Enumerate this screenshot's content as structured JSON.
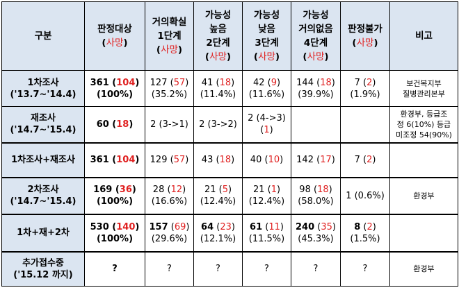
{
  "headers": [
    {
      "label": "구분",
      "sub": ""
    },
    {
      "label": "판정대상",
      "sub": "사망"
    },
    {
      "label": "거의확실 1단계",
      "l1": "거의확실",
      "l2": "1단계",
      "sub": "사망"
    },
    {
      "label": "가능성 높음 2단계",
      "l1": "가능성",
      "l2": "높음",
      "l3": "2단계",
      "sub": "사망"
    },
    {
      "label": "가능성 낮음 3단계",
      "l1": "가능성",
      "l2": "낮음",
      "l3": "3단계",
      "sub": "사망"
    },
    {
      "label": "가능성 거의없음 4단계",
      "l1": "가능성",
      "l2": "거의없음",
      "l3": "4단계",
      "sub": "사망"
    },
    {
      "label": "판정불가",
      "sub": "사망"
    },
    {
      "label": "비고"
    }
  ],
  "rows": [
    {
      "label": "1차조사",
      "period": "('13.7~'14.4)",
      "target": {
        "n": "361",
        "d": "104",
        "pct": "(100%)"
      },
      "s1": {
        "n": "127",
        "d": "57",
        "pct": "(35.2%)"
      },
      "s2": {
        "n": "41",
        "d": "18",
        "pct": "(11.4%)"
      },
      "s3": {
        "n": "42",
        "d": "9",
        "pct": "(11.6%)"
      },
      "s4": {
        "n": "144",
        "d": "18",
        "pct": "(39.9%)"
      },
      "na": {
        "n": "7",
        "d": "2",
        "pct": "(1.9%)"
      },
      "note": [
        "보건복지부",
        "질병관리본부"
      ]
    },
    {
      "label": "재조사",
      "period": "('14.7~'15.4)",
      "target": {
        "n": "60",
        "d": "18"
      },
      "s1": "2 (3->1)",
      "s2": "2 (3->2)",
      "s3": {
        "a": "2 (4->3)",
        "d": "1"
      },
      "note": [
        "환경부, 등급조",
        "정 6(10%) 등급",
        "미조정 54(90%)"
      ]
    },
    {
      "label": "1차조사+재조사",
      "target": {
        "n": "361",
        "d": "104"
      },
      "s1": {
        "n": "129",
        "d": "57"
      },
      "s2": {
        "n": "43",
        "d": "18"
      },
      "s3": {
        "n": "40",
        "d": "10"
      },
      "s4": {
        "n": "142",
        "d": "17"
      },
      "na": {
        "n": "7",
        "d": "2"
      }
    },
    {
      "label": "2차조사",
      "period": "('14.7~'15.4)",
      "target": {
        "n": "169",
        "d": "36",
        "pct": "(100%)"
      },
      "s1": {
        "n": "28",
        "d": "12",
        "pct": "(16.6%)"
      },
      "s2": {
        "n": "21",
        "d": "5",
        "pct": "(12.4%)"
      },
      "s3": {
        "n": "21",
        "d": "1",
        "pct": "(12.4%)"
      },
      "s4": {
        "n": "98",
        "d": "18",
        "pct": "(58.0%)"
      },
      "na": "1 (0.6%)",
      "note": "환경부"
    },
    {
      "label": "1차+재+2차",
      "target": {
        "n": "530",
        "d": "140",
        "pct": "(100%)"
      },
      "s1": {
        "n": "157",
        "d": "69",
        "pct": "(29.6%)"
      },
      "s2": {
        "n": "64",
        "d": "23",
        "pct": "(12.1%)"
      },
      "s3": {
        "n": "61",
        "d": "11",
        "pct": "(11.5%)"
      },
      "s4": {
        "n": "240",
        "d": "35",
        "pct": "(45.3%)"
      },
      "na": {
        "n": "8",
        "d": "2",
        "pct": "(1.5%)"
      }
    },
    {
      "label": "추가접수중",
      "period": "('15.12 까지)",
      "target": "?",
      "s1": "?",
      "s2": "?",
      "s3": "?",
      "s4": "?",
      "na": "?",
      "note": "환경부"
    }
  ],
  "colors": {
    "header_bg": "#dbe5f1",
    "death_red": "#e02020",
    "border": "#000000"
  }
}
